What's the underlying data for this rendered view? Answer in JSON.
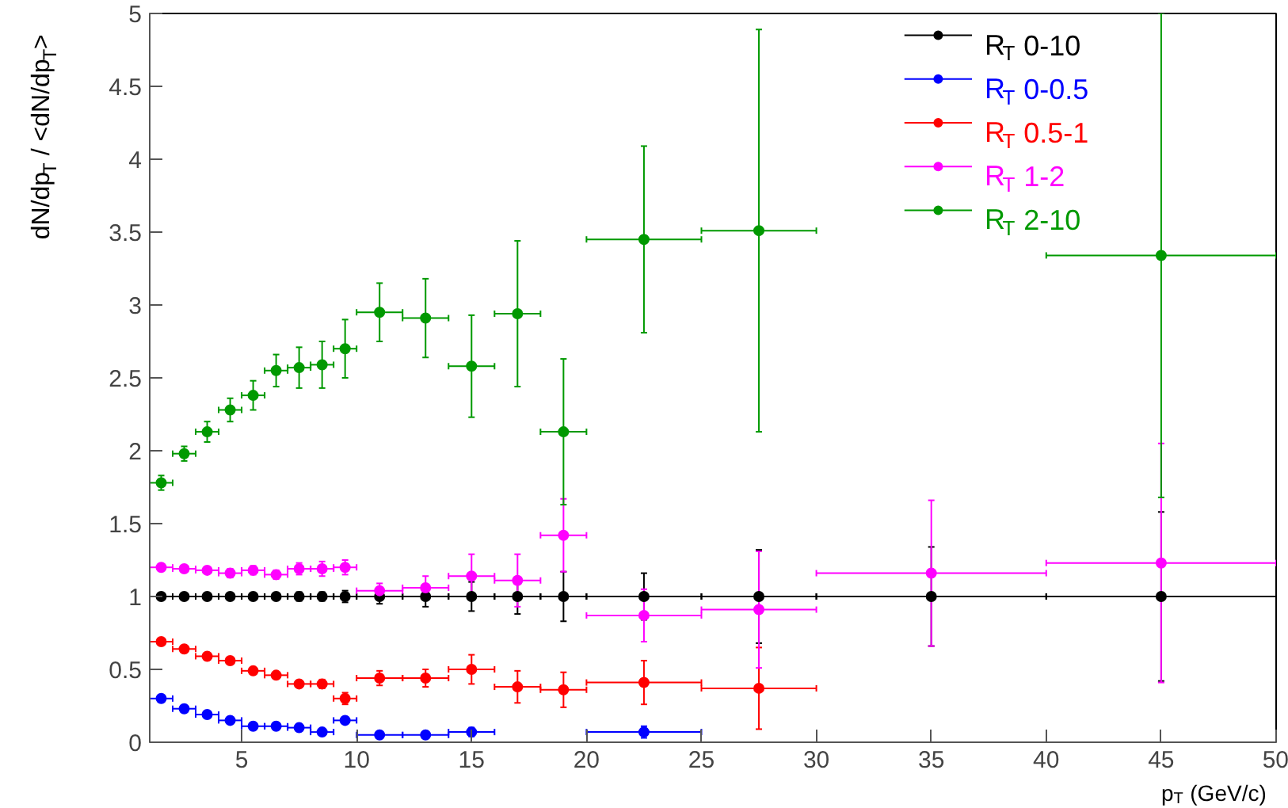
{
  "chart_data": {
    "type": "scatter",
    "xlabel": "p$_{T}$ (GeV/c)",
    "ylabel": "dN/dp$_{T}$ / <dN/dp$_{T}$>",
    "x": [
      1.5,
      2.5,
      3.5,
      4.5,
      5.5,
      6.5,
      7.5,
      8.5,
      9.5,
      11,
      13,
      15,
      17,
      19,
      22.5,
      27.5,
      35,
      45
    ],
    "xlim": [
      1,
      50
    ],
    "xticks": [
      5,
      10,
      15,
      20,
      25,
      30,
      35,
      40,
      45,
      50
    ],
    "ylim": [
      0,
      5
    ],
    "yticks": [
      0,
      0.5,
      1,
      1.5,
      2,
      2.5,
      3,
      3.5,
      4,
      4.5,
      5
    ],
    "grid": false,
    "legend": "top right",
    "marker": "circle",
    "series": [
      {
        "name": "R$_{T}$ 0-10",
        "color": "#000000",
        "values": [
          1,
          1,
          1,
          1,
          1,
          1,
          1,
          1,
          1,
          1,
          1,
          1,
          1,
          1,
          1,
          1,
          1,
          1
        ],
        "errors": [
          0.01,
          0.01,
          0.01,
          0.01,
          0.01,
          0.02,
          0.03,
          0.03,
          0.04,
          0.05,
          0.07,
          0.1,
          0.12,
          0.17,
          0.16,
          0.32,
          0.34,
          0.58
        ],
        "xerrors": [
          0.5,
          0.5,
          0.5,
          0.5,
          0.5,
          0.5,
          0.5,
          0.5,
          0.5,
          1,
          1,
          1,
          1,
          1,
          2.5,
          2.5,
          5,
          5
        ]
      },
      {
        "name": "R$_{T}$ 0-0.5",
        "color": "#0000ff",
        "values": [
          0.3,
          0.23,
          0.19,
          0.15,
          0.11,
          0.11,
          0.1,
          0.07,
          0.15,
          0.05,
          0.05,
          0.07,
          null,
          null,
          0.07,
          null,
          null,
          null
        ],
        "errors": [
          0.01,
          0.01,
          0.01,
          0.01,
          0.01,
          0.01,
          0.01,
          0.01,
          0.02,
          0.01,
          0.02,
          0.03,
          null,
          null,
          0.04,
          null,
          null,
          null
        ],
        "xerrors": [
          0.5,
          0.5,
          0.5,
          0.5,
          0.5,
          0.5,
          0.5,
          0.5,
          0.5,
          1,
          1,
          1,
          null,
          null,
          2.5,
          null,
          null,
          null
        ]
      },
      {
        "name": "R$_{T}$ 0.5-1",
        "color": "#ff0000",
        "values": [
          0.69,
          0.64,
          0.59,
          0.56,
          0.49,
          0.46,
          0.4,
          0.4,
          0.3,
          0.44,
          0.44,
          0.5,
          0.38,
          0.36,
          0.41,
          0.37,
          null,
          null
        ],
        "errors": [
          0.01,
          0.01,
          0.01,
          0.01,
          0.01,
          0.02,
          0.02,
          0.03,
          0.04,
          0.05,
          0.06,
          0.1,
          0.11,
          0.12,
          0.15,
          0.28,
          null,
          null
        ],
        "xerrors": [
          0.5,
          0.5,
          0.5,
          0.5,
          0.5,
          0.5,
          0.5,
          0.5,
          0.5,
          1,
          1,
          1,
          1,
          1,
          2.5,
          2.5,
          null,
          null
        ]
      },
      {
        "name": "R$_{T}$ 1-2",
        "color": "#ff00ff",
        "values": [
          1.2,
          1.19,
          1.18,
          1.16,
          1.18,
          1.15,
          1.19,
          1.19,
          1.2,
          1.04,
          1.06,
          1.14,
          1.11,
          1.42,
          0.87,
          0.91,
          1.16,
          1.23
        ],
        "errors": [
          0.02,
          0.02,
          0.02,
          0.03,
          0.03,
          0.03,
          0.04,
          0.05,
          0.05,
          0.05,
          0.08,
          0.15,
          0.18,
          0.25,
          0.18,
          0.4,
          0.5,
          0.82
        ],
        "xerrors": [
          0.5,
          0.5,
          0.5,
          0.5,
          0.5,
          0.5,
          0.5,
          0.5,
          0.5,
          1,
          1,
          1,
          1,
          1,
          2.5,
          2.5,
          5,
          5
        ]
      },
      {
        "name": "R$_{T}$ 2-10",
        "color": "#009900",
        "values": [
          1.78,
          1.98,
          2.13,
          2.28,
          2.38,
          2.55,
          2.57,
          2.59,
          2.7,
          2.95,
          2.91,
          2.58,
          2.94,
          2.13,
          3.45,
          3.51,
          null,
          3.34
        ],
        "errors": [
          0.05,
          0.05,
          0.07,
          0.08,
          0.1,
          0.11,
          0.14,
          0.16,
          0.2,
          0.2,
          0.27,
          0.35,
          0.5,
          0.5,
          0.64,
          1.38,
          null,
          1.66
        ],
        "xerrors": [
          0.5,
          0.5,
          0.5,
          0.5,
          0.5,
          0.5,
          0.5,
          0.5,
          0.5,
          1,
          1,
          1,
          1,
          1,
          2.5,
          2.5,
          null,
          5
        ]
      }
    ]
  }
}
